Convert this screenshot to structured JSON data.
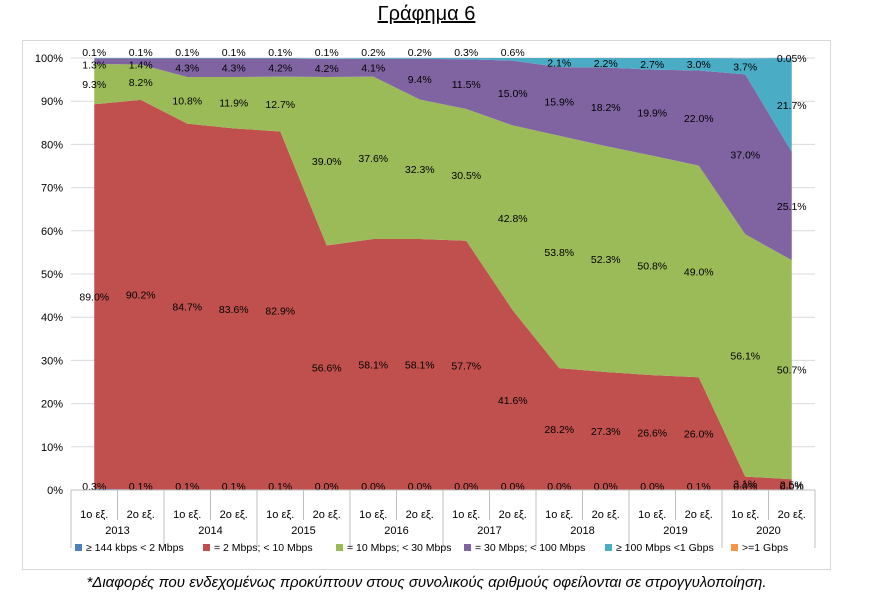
{
  "title": "Γράφημα 6",
  "footnote": "*Διαφορές που ενδεχομένως προκύπτουν στους συνολικούς αριθμούς οφείλονται σε στρογγυλοποίηση.",
  "chart_data": {
    "type": "area",
    "stacked": true,
    "ylim": [
      0,
      100
    ],
    "yticks": [
      "0%",
      "10%",
      "20%",
      "30%",
      "40%",
      "50%",
      "60%",
      "70%",
      "80%",
      "90%",
      "100%"
    ],
    "semesters": [
      "1ο εξ.",
      "2ο εξ.",
      "1ο εξ.",
      "2ο εξ.",
      "1ο εξ.",
      "2ο εξ.",
      "1ο εξ.",
      "2ο εξ.",
      "1ο εξ.",
      "2ο εξ.",
      "1ο εξ.",
      "2ο εξ.",
      "1ο εξ.",
      "2ο εξ.",
      "1ο εξ.",
      "2ο εξ."
    ],
    "years": [
      "2013",
      "2014",
      "2015",
      "2016",
      "2017",
      "2018",
      "2019",
      "2020"
    ],
    "legend_position": "bottom",
    "series": [
      {
        "name": "≥ 144 kbps < 2 Mbps",
        "color": "#4f81bd",
        "values": [
          0.3,
          0.1,
          0.1,
          0.1,
          0.1,
          0.0,
          0.0,
          0.0,
          0.0,
          0.0,
          0.0,
          0.0,
          0.0,
          0.1,
          0.0,
          0.0
        ],
        "labels": [
          "0.3%",
          "0.1%",
          "0.1%",
          "0.1%",
          "0.1%",
          "0.0%",
          "0.0%",
          "0.0%",
          "0.0%",
          "0.0%",
          "0.0%",
          "0.0%",
          "0.0%",
          "0.1%",
          "0.0%",
          "0.0%"
        ]
      },
      {
        "name": "= 2 Mbps; < 10 Mbps",
        "color": "#c0504d",
        "values": [
          89.0,
          90.2,
          84.7,
          83.6,
          82.9,
          56.6,
          58.1,
          58.1,
          57.7,
          41.6,
          28.2,
          27.3,
          26.6,
          26.0,
          3.1,
          2.5
        ],
        "labels": [
          "89.0%",
          "90.2%",
          "84.7%",
          "83.6%",
          "82.9%",
          "56.6%",
          "58.1%",
          "58.1%",
          "57.7%",
          "41.6%",
          "28.2%",
          "27.3%",
          "26.6%",
          "26.0%",
          "3.1%",
          "2.5%"
        ]
      },
      {
        "name": "= 10 Mbps; < 30 Mbps",
        "color": "#9bbb59",
        "values": [
          9.3,
          8.2,
          10.8,
          11.9,
          12.7,
          39.0,
          37.6,
          32.3,
          30.5,
          42.8,
          53.8,
          52.3,
          50.8,
          49.0,
          56.1,
          50.7
        ],
        "labels": [
          "9.3%",
          "8.2%",
          "10.8%",
          "11.9%",
          "12.7%",
          "39.0%",
          "37.6%",
          "32.3%",
          "30.5%",
          "42.8%",
          "53.8%",
          "52.3%",
          "50.8%",
          "49.0%",
          "56.1%",
          "50.7%"
        ]
      },
      {
        "name": "= 30 Mbps; < 100 Mbps",
        "color": "#8064a2",
        "values": [
          1.3,
          1.4,
          4.3,
          4.3,
          4.2,
          4.2,
          4.1,
          9.4,
          11.5,
          15.0,
          15.9,
          18.2,
          19.9,
          22.0,
          37.0,
          25.1
        ],
        "labels": [
          "1.3%",
          "1.4%",
          "4.3%",
          "4.3%",
          "4.2%",
          "4.2%",
          "4.1%",
          "9.4%",
          "11.5%",
          "15.0%",
          "15.9%",
          "18.2%",
          "19.9%",
          "22.0%",
          "37.0%",
          "25.1%"
        ]
      },
      {
        "name": "≥ 100 Mbps <1 Gbps",
        "color": "#4bacc6",
        "values": [
          0.1,
          0.1,
          0.1,
          0.1,
          0.1,
          0.1,
          0.2,
          0.2,
          0.3,
          0.6,
          2.1,
          2.2,
          2.7,
          3.0,
          3.7,
          21.7
        ],
        "labels": [
          "0.1%",
          "0.1%",
          "0.1%",
          "0.1%",
          "0.1%",
          "0.1%",
          "0.2%",
          "0.2%",
          "0.3%",
          "0.6%",
          "2.1%",
          "2.2%",
          "2.7%",
          "3.0%",
          "3.7%",
          "21.7%"
        ]
      },
      {
        "name": ">=1 Gbps",
        "color": "#f79646",
        "values": [
          0,
          0,
          0,
          0,
          0,
          0,
          0,
          0,
          0,
          0,
          0,
          0,
          0,
          0,
          0,
          0.05
        ],
        "labels": [
          "",
          "",
          "",
          "",
          "",
          "",
          "",
          "",
          "",
          "",
          "",
          "",
          "",
          "",
          "",
          "0.05%"
        ]
      }
    ]
  }
}
